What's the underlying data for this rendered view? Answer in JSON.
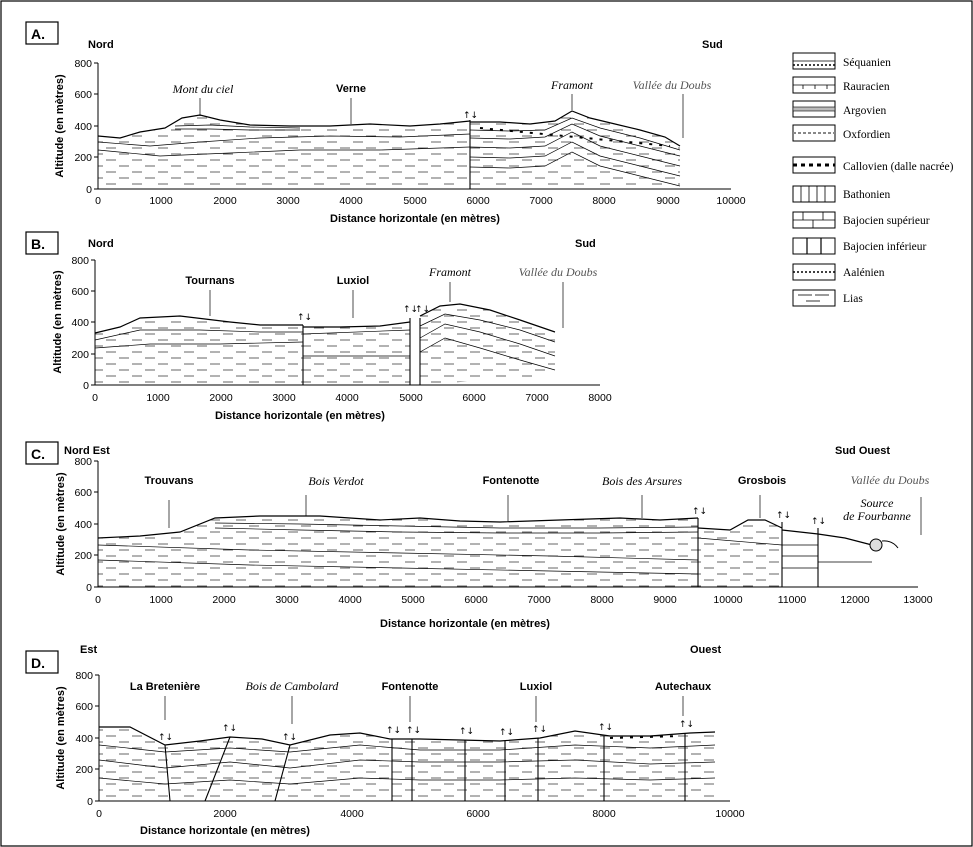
{
  "panels": {
    "A": {
      "label": "A.",
      "dir_left": "Nord",
      "dir_right": "Sud",
      "ylabel": "Altitude (en mètres)",
      "xlabel": "Distance horizontale (en mètres)",
      "yticks": [
        "0",
        "200",
        "400",
        "600",
        "800"
      ],
      "xticks": [
        "0",
        "1000",
        "2000",
        "3000",
        "4000",
        "5000",
        "6000",
        "7000",
        "8000",
        "9000",
        "10000"
      ],
      "places": {
        "mont_du_ciel": "Mont du ciel",
        "verne": "Verne",
        "framont": "Framont",
        "vallee": "Vallée du Doubs"
      }
    },
    "B": {
      "label": "B.",
      "dir_left": "Nord",
      "dir_right": "Sud",
      "ylabel": "Altitude (en mètres)",
      "xlabel": "Distance horizontale (en mètres)",
      "yticks": [
        "0",
        "200",
        "400",
        "600",
        "800"
      ],
      "xticks": [
        "0",
        "1000",
        "2000",
        "3000",
        "4000",
        "5000",
        "6000",
        "7000",
        "8000"
      ],
      "places": {
        "tournans": "Tournans",
        "luxiol": "Luxiol",
        "framont": "Framont",
        "vallee": "Vallée du Doubs"
      }
    },
    "C": {
      "label": "C.",
      "dir_left": "Nord Est",
      "dir_right": "Sud Ouest",
      "ylabel": "Altitude (en mètres)",
      "xlabel": "Distance horizontale (en mètres)",
      "yticks": [
        "0",
        "200",
        "400",
        "600",
        "800"
      ],
      "xticks": [
        "0",
        "1000",
        "2000",
        "3000",
        "4000",
        "5000",
        "6000",
        "7000",
        "8000",
        "9000",
        "10000",
        "11000",
        "12000",
        "13000"
      ],
      "places": {
        "trouvans": "Trouvans",
        "bois_verdot": "Bois Verdot",
        "fontenotte": "Fontenotte",
        "bois_arsures": "Bois des Arsures",
        "grosbois": "Grosbois",
        "vallee": "Vallée du Doubs",
        "source_1": "Source",
        "source_2": "de Fourbanne"
      }
    },
    "D": {
      "label": "D.",
      "dir_left": "Est",
      "dir_right": "Ouest",
      "ylabel": "Altitude (en mètres)",
      "xlabel": "Distance horizontale (en mètres)",
      "yticks": [
        "0",
        "200",
        "400",
        "600",
        "800"
      ],
      "xticks": [
        "0",
        "2000",
        "4000",
        "6000",
        "8000",
        "10000"
      ],
      "places": {
        "la_breteniere": "La Bretenière",
        "bois_cambolard": "Bois de Cambolard",
        "fontenotte": "Fontenotte",
        "luxiol": "Luxiol",
        "autechaux": "Autechaux"
      }
    }
  },
  "fault_arrows": "↑↓",
  "legend": [
    {
      "name": "Séquanien"
    },
    {
      "name": "Rauracien"
    },
    {
      "name": "Argovien"
    },
    {
      "name": "Oxfordien"
    },
    {
      "name": "Callovien (dalle nacrée)"
    },
    {
      "name": "Bathonien"
    },
    {
      "name": "Bajocien supérieur"
    },
    {
      "name": "Bajocien inférieur"
    },
    {
      "name": "Aalénien"
    },
    {
      "name": "Lias"
    }
  ]
}
